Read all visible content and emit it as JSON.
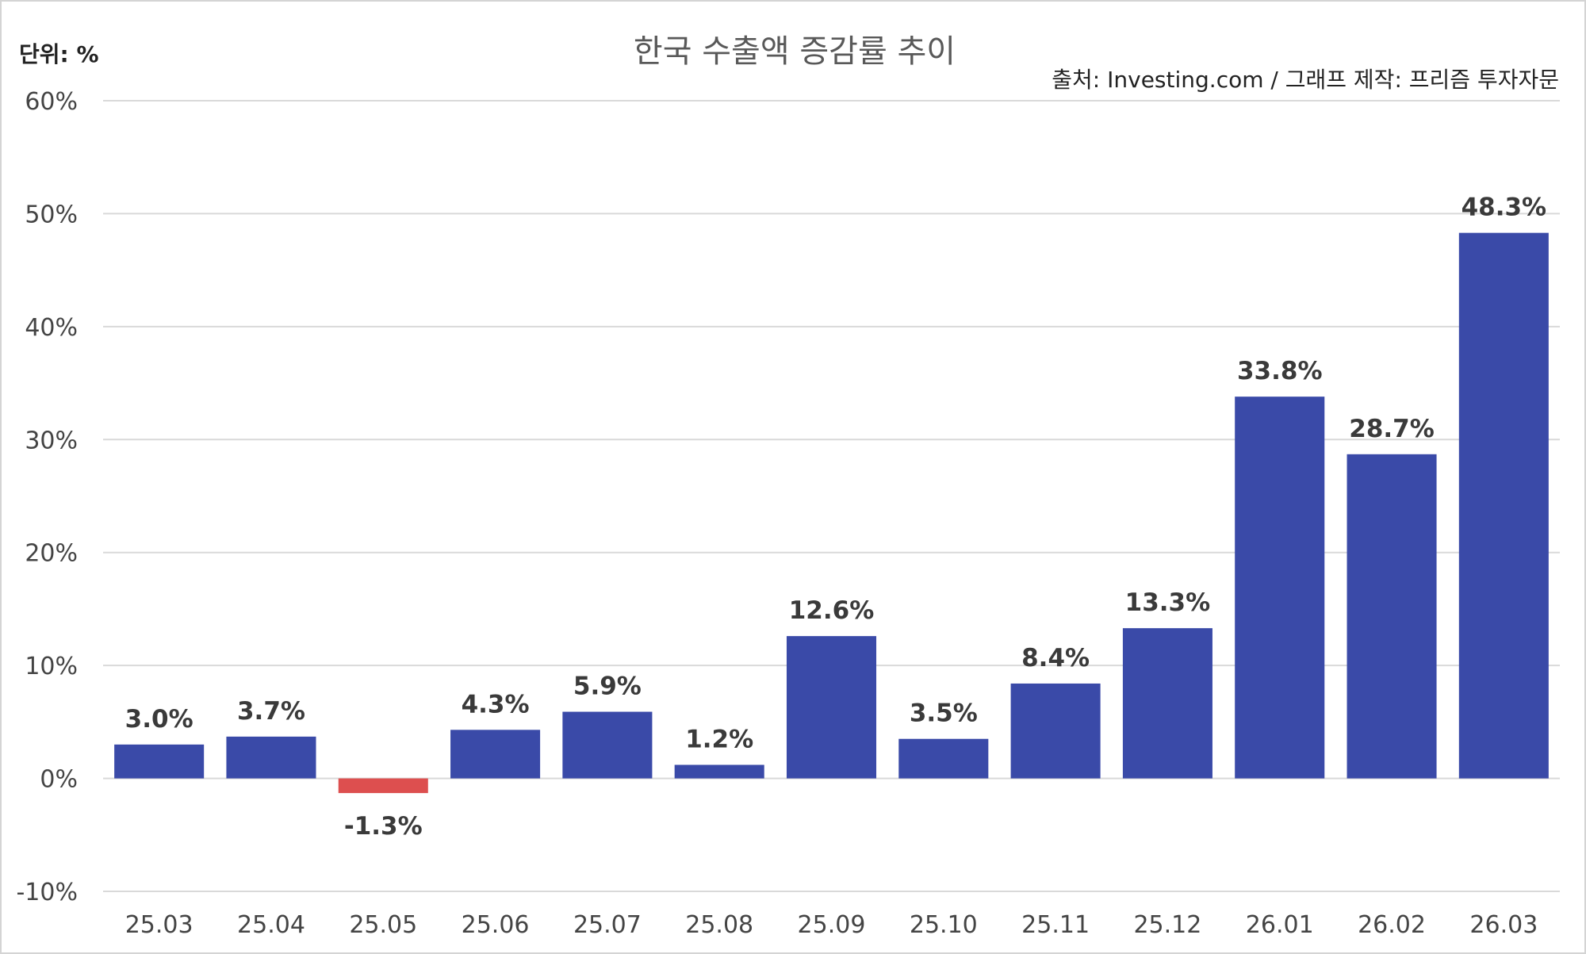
{
  "chart_data": {
    "type": "bar",
    "title": "한국 수출액 증감률 추이",
    "unit_label": "단위: %",
    "source": "출처: Investing.com / 그래프 제작: 프리즘 투자자문",
    "categories": [
      "25.03",
      "25.04",
      "25.05",
      "25.06",
      "25.07",
      "25.08",
      "25.09",
      "25.10",
      "25.11",
      "25.12",
      "26.01",
      "26.02",
      "26.03"
    ],
    "values": [
      3.0,
      3.7,
      -1.3,
      4.3,
      5.9,
      1.2,
      12.6,
      3.5,
      8.4,
      13.3,
      33.8,
      28.7,
      48.3
    ],
    "data_labels": [
      "3.0%",
      "3.7%",
      "-1.3%",
      "4.3%",
      "5.9%",
      "1.2%",
      "12.6%",
      "3.5%",
      "8.4%",
      "13.3%",
      "33.8%",
      "28.7%",
      "48.3%"
    ],
    "ylim": [
      -10,
      60
    ],
    "yticks": [
      -10,
      0,
      10,
      20,
      30,
      40,
      50,
      60
    ],
    "ytick_labels": [
      "-10%",
      "0%",
      "10%",
      "20%",
      "30%",
      "40%",
      "50%",
      "60%"
    ],
    "grid": true,
    "legend": "none",
    "colors": {
      "positive": "#3a4aa8",
      "negative": "#dd4f4f",
      "grid": "#d9d9d9"
    }
  }
}
